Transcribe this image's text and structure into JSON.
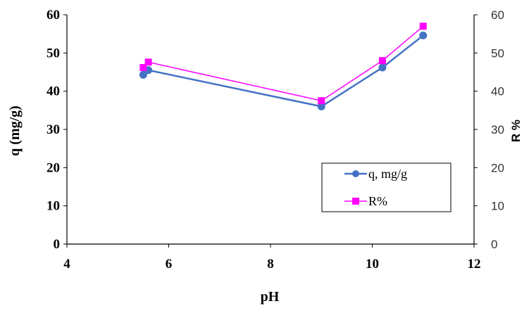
{
  "chart_data": {
    "type": "line",
    "xlabel": "pH",
    "ylabel": "q (mg/g)",
    "y2label": "R %",
    "xlim": [
      4,
      12
    ],
    "ylim": [
      0,
      60
    ],
    "y2lim": [
      0,
      60
    ],
    "x_ticks": [
      "4",
      "6",
      "8",
      "10",
      "12"
    ],
    "y_ticks": [
      "0",
      "10",
      "20",
      "30",
      "40",
      "50",
      "60"
    ],
    "y2_ticks": [
      "0",
      "10",
      "20",
      "30",
      "40",
      "50",
      "60"
    ],
    "grid": false,
    "legend_position": "bottom-right",
    "series": [
      {
        "name": "q, mg/g",
        "axis": "left",
        "marker": "circle",
        "color": "#4472C4",
        "x": [
          5.5,
          5.6,
          9.0,
          10.2,
          11.0
        ],
        "y": [
          44.3,
          45.5,
          36.0,
          46.2,
          54.6
        ]
      },
      {
        "name": "R%",
        "axis": "right",
        "marker": "square",
        "color": "#FF00FF",
        "x": [
          5.5,
          5.6,
          9.0,
          10.2,
          11.0
        ],
        "y": [
          46.2,
          47.6,
          37.5,
          48.0,
          57.0
        ]
      }
    ]
  }
}
